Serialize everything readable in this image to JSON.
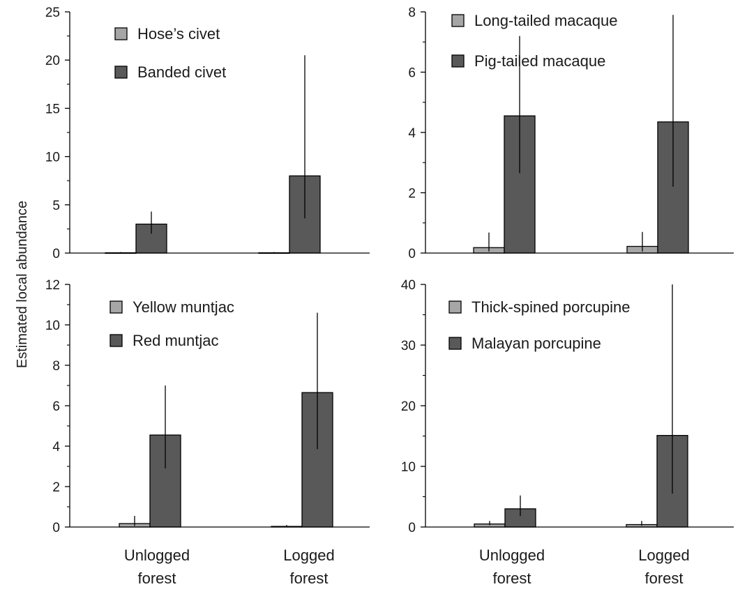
{
  "ylabel": "Estimated local abundance",
  "x_categories": [
    [
      "Unlogged",
      "forest"
    ],
    [
      "Logged",
      "forest"
    ]
  ],
  "colors": {
    "light_bar": "#a6a6a6",
    "dark_bar": "#595959",
    "edge": "#000000",
    "axis": "#000000"
  },
  "chart_data": [
    {
      "type": "bar",
      "categories": [
        "Unlogged forest",
        "Logged forest"
      ],
      "ylim": [
        0,
        25
      ],
      "yticks": [
        0,
        5,
        10,
        15,
        20,
        25
      ],
      "legend": "top-left",
      "series": [
        {
          "name": "Hose’s civet",
          "values": [
            0.03,
            0.03
          ],
          "err_low": [
            0.03,
            0.03
          ],
          "err_high": [
            0.1,
            0.1
          ]
        },
        {
          "name": "Banded civet",
          "values": [
            3.0,
            8.0
          ],
          "err_low": [
            2.0,
            3.6
          ],
          "err_high": [
            4.3,
            20.5
          ]
        }
      ]
    },
    {
      "type": "bar",
      "categories": [
        "Unlogged forest",
        "Logged forest"
      ],
      "ylim": [
        0,
        8
      ],
      "yticks": [
        0,
        2,
        4,
        6,
        8
      ],
      "legend": "top-left",
      "series": [
        {
          "name": "Long-tailed macaque",
          "values": [
            0.18,
            0.22
          ],
          "err_low": [
            0.05,
            0.05
          ],
          "err_high": [
            0.68,
            0.7
          ]
        },
        {
          "name": "Pig-tailed macaque",
          "values": [
            4.55,
            4.35
          ],
          "err_low": [
            2.65,
            2.2
          ],
          "err_high": [
            7.2,
            7.9
          ]
        }
      ]
    },
    {
      "type": "bar",
      "categories": [
        "Unlogged forest",
        "Logged forest"
      ],
      "ylim": [
        0,
        12
      ],
      "yticks": [
        0,
        2,
        4,
        6,
        8,
        10,
        12
      ],
      "legend": "top-left",
      "series": [
        {
          "name": "Yellow muntjac",
          "values": [
            0.17,
            0.03
          ],
          "err_low": [
            0.05,
            0.02
          ],
          "err_high": [
            0.55,
            0.1
          ]
        },
        {
          "name": "Red muntjac",
          "values": [
            4.55,
            6.65
          ],
          "err_low": [
            2.9,
            3.85
          ],
          "err_high": [
            7.0,
            10.6
          ]
        }
      ]
    },
    {
      "type": "bar",
      "categories": [
        "Unlogged forest",
        "Logged forest"
      ],
      "ylim": [
        0,
        40
      ],
      "yticks": [
        0,
        10,
        20,
        30,
        40
      ],
      "legend": "top-left",
      "series": [
        {
          "name": "Thick-spined porcupine",
          "values": [
            0.5,
            0.4
          ],
          "err_low": [
            0.3,
            0.2
          ],
          "err_high": [
            1.0,
            1.0
          ]
        },
        {
          "name": "Malayan porcupine",
          "values": [
            3.0,
            15.1
          ],
          "err_low": [
            1.8,
            5.5
          ],
          "err_high": [
            5.2,
            40.0
          ]
        }
      ]
    }
  ]
}
